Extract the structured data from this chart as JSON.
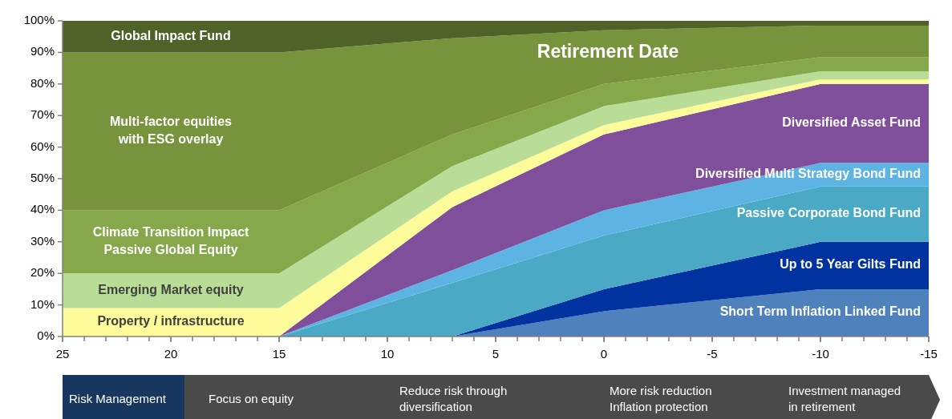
{
  "chart_data": {
    "type": "area",
    "stacked": true,
    "x": [
      25,
      15,
      7,
      0,
      -10,
      -15
    ],
    "xlim": [
      25,
      -15
    ],
    "xticks": [
      25,
      20,
      15,
      10,
      5,
      0,
      -5,
      -10,
      -15
    ],
    "ylim": [
      0,
      100
    ],
    "yticks": [
      {
        "value": 0,
        "label": "0%"
      },
      {
        "value": 10,
        "label": "10%"
      },
      {
        "value": 20,
        "label": "20%"
      },
      {
        "value": 30,
        "label": "30%"
      },
      {
        "value": 40,
        "label": "40%"
      },
      {
        "value": 50,
        "label": "50%"
      },
      {
        "value": 60,
        "label": "60%"
      },
      {
        "value": 70,
        "label": "70%"
      },
      {
        "value": 80,
        "label": "80%"
      },
      {
        "value": 90,
        "label": "90%"
      },
      {
        "value": 100,
        "label": "100%"
      }
    ],
    "grid": false,
    "series": [
      {
        "name": "Short Term Inflation Linked Fund",
        "color": "#4f81bd",
        "values": [
          0,
          0,
          0,
          8,
          15,
          15
        ]
      },
      {
        "name": "Up to 5 Year Gilts Fund",
        "color": "#0033a0",
        "values": [
          0,
          0,
          0,
          7,
          15,
          15
        ]
      },
      {
        "name": "Passive Corporate Bond Fund",
        "color": "#4aaac6",
        "values": [
          0,
          0,
          17,
          17,
          17.5,
          17.5
        ]
      },
      {
        "name": "Diversified Multi Strategy Bond Fund",
        "color": "#5db4e3",
        "values": [
          0,
          0,
          4,
          8,
          7.5,
          7.5
        ]
      },
      {
        "name": "Diversified Asset Fund",
        "color": "#7f4f9b",
        "values": [
          0,
          0,
          20,
          24,
          25,
          25
        ]
      },
      {
        "name": "Property / infrastructure",
        "color": "#fdfb9a",
        "values": [
          9,
          9,
          5,
          3,
          1.5,
          1.5
        ]
      },
      {
        "name": "Emerging Market equity",
        "color": "#b9dc96",
        "values": [
          11,
          11,
          8,
          6,
          2.5,
          2.5
        ]
      },
      {
        "name": "Climate Transition Impact\nPassive Global Equity",
        "color": "#86a84a",
        "values": [
          20,
          20,
          10,
          7,
          4.5,
          4.5
        ]
      },
      {
        "name": "Multi-factor equities\nwith ESG overlay",
        "color": "#77933c",
        "values": [
          50,
          50,
          30.5,
          17,
          10,
          10
        ]
      },
      {
        "name": "Global Impact Fund",
        "color": "#4f6228",
        "values": [
          10,
          10,
          5.5,
          3,
          1.5,
          1.5
        ]
      }
    ],
    "annotations": [
      "Retirement Date",
      "Risk Management",
      "Focus on equity",
      "Reduce risk through\ndiversification",
      "More risk reduction\nInflation protection",
      "Investment  managed\nin retirement"
    ]
  }
}
